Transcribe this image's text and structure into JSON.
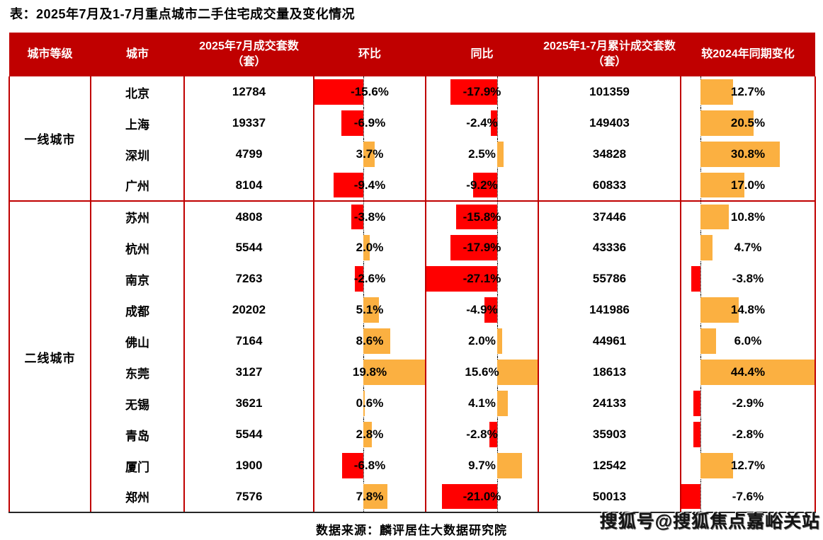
{
  "title": "表：2025年7月及1-7月重点城市二手住宅成交量及变化情况",
  "header": {
    "tier": "城市等级",
    "city": "城市",
    "july_volume": "2025年7月成交套数（套）",
    "mom": "环比",
    "yoy": "同比",
    "cum_volume": "2025年1-7月累计成交套数（套）",
    "cum_change": "较2024年同期变化"
  },
  "colors": {
    "header_bg": "#C00000",
    "grid_red": "#C00000",
    "negative_bar": "#FF0000",
    "positive_bar": "#FBB041",
    "bottom_line": "#262626",
    "header_text": "#FFFFFF",
    "body_text": "#000000"
  },
  "groups": [
    {
      "tier": "一线城市",
      "rows": [
        {
          "city": "北京",
          "july_volume": "12784",
          "mom_pct": -15.6,
          "mom_label": "-15.6%",
          "yoy_pct": -17.9,
          "yoy_label": "-17.9%",
          "cum_volume": "101359",
          "chg_pct": 12.7,
          "chg_label": "12.7%"
        },
        {
          "city": "上海",
          "july_volume": "19337",
          "mom_pct": -6.9,
          "mom_label": "-6.9%",
          "yoy_pct": -2.4,
          "yoy_label": "-2.4%",
          "cum_volume": "149403",
          "chg_pct": 20.5,
          "chg_label": "20.5%"
        },
        {
          "city": "深圳",
          "july_volume": "4799",
          "mom_pct": 3.7,
          "mom_label": "3.7%",
          "yoy_pct": 2.5,
          "yoy_label": "2.5%",
          "cum_volume": "34828",
          "chg_pct": 30.8,
          "chg_label": "30.8%"
        },
        {
          "city": "广州",
          "july_volume": "8104",
          "mom_pct": -9.4,
          "mom_label": "-9.4%",
          "yoy_pct": -9.2,
          "yoy_label": "-9.2%",
          "cum_volume": "60833",
          "chg_pct": 17.0,
          "chg_label": "17.0%"
        }
      ]
    },
    {
      "tier": "二线城市",
      "rows": [
        {
          "city": "苏州",
          "july_volume": "4808",
          "mom_pct": -3.8,
          "mom_label": "-3.8%",
          "yoy_pct": -15.8,
          "yoy_label": "-15.8%",
          "cum_volume": "37446",
          "chg_pct": 10.8,
          "chg_label": "10.8%"
        },
        {
          "city": "杭州",
          "july_volume": "5544",
          "mom_pct": 2.0,
          "mom_label": "2.0%",
          "yoy_pct": -17.9,
          "yoy_label": "-17.9%",
          "cum_volume": "43336",
          "chg_pct": 4.7,
          "chg_label": "4.7%"
        },
        {
          "city": "南京",
          "july_volume": "7263",
          "mom_pct": -2.6,
          "mom_label": "-2.6%",
          "yoy_pct": -27.1,
          "yoy_label": "-27.1%",
          "cum_volume": "55786",
          "chg_pct": -3.8,
          "chg_label": "-3.8%"
        },
        {
          "city": "成都",
          "july_volume": "20202",
          "mom_pct": 5.1,
          "mom_label": "5.1%",
          "yoy_pct": -4.9,
          "yoy_label": "-4.9%",
          "cum_volume": "141986",
          "chg_pct": 14.8,
          "chg_label": "14.8%"
        },
        {
          "city": "佛山",
          "july_volume": "7164",
          "mom_pct": 8.6,
          "mom_label": "8.6%",
          "yoy_pct": 2.0,
          "yoy_label": "2.0%",
          "cum_volume": "44961",
          "chg_pct": 6.0,
          "chg_label": "6.0%"
        },
        {
          "city": "东莞",
          "july_volume": "3127",
          "mom_pct": 19.8,
          "mom_label": "19.8%",
          "yoy_pct": 15.6,
          "yoy_label": "15.6%",
          "cum_volume": "18613",
          "chg_pct": 44.4,
          "chg_label": "44.4%"
        },
        {
          "city": "无锡",
          "july_volume": "3621",
          "mom_pct": 0.6,
          "mom_label": "0.6%",
          "yoy_pct": 4.1,
          "yoy_label": "4.1%",
          "cum_volume": "24133",
          "chg_pct": -2.9,
          "chg_label": "-2.9%"
        },
        {
          "city": "青岛",
          "july_volume": "5544",
          "mom_pct": 2.8,
          "mom_label": "2.8%",
          "yoy_pct": -2.8,
          "yoy_label": "-2.8%",
          "cum_volume": "35903",
          "chg_pct": -2.8,
          "chg_label": "-2.8%"
        },
        {
          "city": "厦门",
          "july_volume": "1900",
          "mom_pct": -6.8,
          "mom_label": "-6.8%",
          "yoy_pct": 9.7,
          "yoy_label": "9.7%",
          "cum_volume": "12542",
          "chg_pct": 12.7,
          "chg_label": "12.7%"
        },
        {
          "city": "郑州",
          "july_volume": "7576",
          "mom_pct": 7.8,
          "mom_label": "7.8%",
          "yoy_pct": -21.0,
          "yoy_label": "-21.0%",
          "cum_volume": "50013",
          "chg_pct": -7.6,
          "chg_label": "-7.6%"
        }
      ]
    }
  ],
  "footer": {
    "source": "数据来源：麟评居住大数据研究院"
  },
  "watermark": "搜狐号@搜狐焦点嘉峪关站",
  "chart_data": {
    "type": "table",
    "title": "表：2025年7月及1-7月重点城市二手住宅成交量及变化情况",
    "categories": [
      "北京",
      "上海",
      "深圳",
      "广州",
      "苏州",
      "杭州",
      "南京",
      "成都",
      "佛山",
      "东莞",
      "无锡",
      "青岛",
      "厦门",
      "郑州"
    ],
    "city_tiers": {
      "一线城市": [
        "北京",
        "上海",
        "深圳",
        "广州"
      ],
      "二线城市": [
        "苏州",
        "杭州",
        "南京",
        "成都",
        "佛山",
        "东莞",
        "无锡",
        "青岛",
        "厦门",
        "郑州"
      ]
    },
    "series": [
      {
        "name": "2025年7月成交套数（套）",
        "values": [
          12784,
          19337,
          4799,
          8104,
          4808,
          5544,
          7263,
          20202,
          7164,
          3127,
          3621,
          5544,
          1900,
          7576
        ]
      },
      {
        "name": "环比",
        "unit": "%",
        "style": "data-bar",
        "values": [
          -15.6,
          -6.9,
          3.7,
          -9.4,
          -3.8,
          2.0,
          -2.6,
          5.1,
          8.6,
          19.8,
          0.6,
          2.8,
          -6.8,
          7.8
        ]
      },
      {
        "name": "同比",
        "unit": "%",
        "style": "data-bar",
        "values": [
          -17.9,
          -2.4,
          2.5,
          -9.2,
          -15.8,
          -17.9,
          -27.1,
          -4.9,
          2.0,
          15.6,
          4.1,
          -2.8,
          9.7,
          -21.0
        ]
      },
      {
        "name": "2025年1-7月累计成交套数（套）",
        "values": [
          101359,
          149403,
          34828,
          60833,
          37446,
          43336,
          55786,
          141986,
          44961,
          18613,
          24133,
          35903,
          12542,
          50013
        ]
      },
      {
        "name": "较2024年同期变化",
        "unit": "%",
        "style": "data-bar",
        "values": [
          12.7,
          20.5,
          30.8,
          17.0,
          10.8,
          4.7,
          -3.8,
          14.8,
          6.0,
          44.4,
          -2.9,
          -2.8,
          12.7,
          -7.6
        ]
      }
    ],
    "bar_colors": {
      "positive": "#FBB041",
      "negative": "#FF0000"
    },
    "source": "数据来源：麟评居住大数据研究院"
  }
}
